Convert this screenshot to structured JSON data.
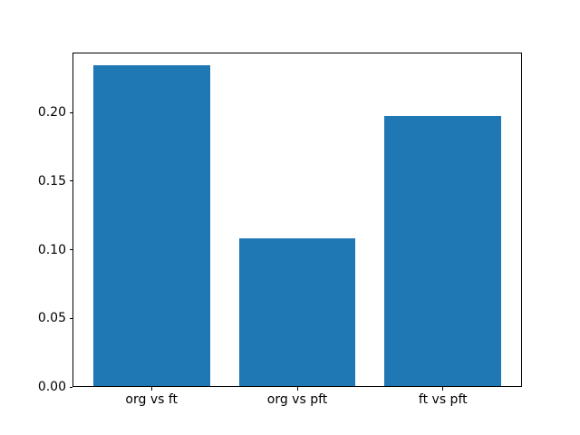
{
  "chart_data": {
    "type": "bar",
    "categories": [
      "org vs ft",
      "org vs pft",
      "ft vs pft"
    ],
    "values": [
      0.234,
      0.108,
      0.197
    ],
    "ytick_labels": [
      "0.00",
      "0.05",
      "0.10",
      "0.15",
      "0.20"
    ],
    "ytick_values": [
      0.0,
      0.05,
      0.1,
      0.15,
      0.2
    ],
    "ylim": [
      0,
      0.244
    ],
    "xlim": [
      -0.5425,
      2.5425
    ],
    "bar_positions": [
      0,
      1,
      2
    ],
    "bar_width": 0.8,
    "bar_color": "#1f77b4",
    "background_color": "#ffffff",
    "spine_color": "#000000",
    "grid": "off",
    "legend": "none",
    "title": "",
    "xlabel": "",
    "ylabel": ""
  }
}
